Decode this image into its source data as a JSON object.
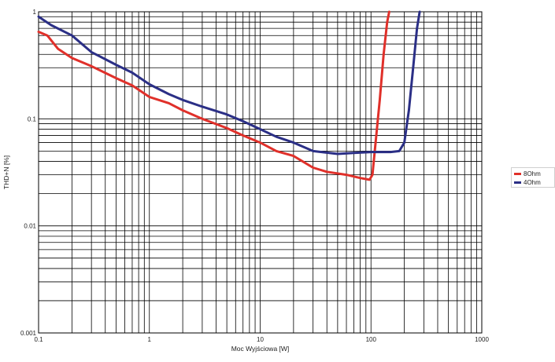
{
  "chart_data": {
    "type": "line",
    "xlabel": "Moc Wyjściowa [W]",
    "ylabel": "THD+N [%]",
    "x_scale": "log",
    "y_scale": "log",
    "xlim": [
      0.1,
      1000
    ],
    "ylim": [
      0.001,
      1
    ],
    "grid": true,
    "legend_position": "right",
    "x_tick_labels": [
      "0.1",
      "1",
      "10",
      "100",
      "1000"
    ],
    "y_tick_labels": [
      "1",
      "0.1",
      "0.01",
      "0.001"
    ],
    "x_ticks": [
      0.1,
      1,
      10,
      100,
      1000
    ],
    "y_ticks": [
      1,
      0.1,
      0.01,
      0.001
    ],
    "series": [
      {
        "name": "8Ohm",
        "color": "#e0302a",
        "points": [
          [
            0.1,
            0.65
          ],
          [
            0.12,
            0.6
          ],
          [
            0.15,
            0.45
          ],
          [
            0.2,
            0.37
          ],
          [
            0.3,
            0.31
          ],
          [
            0.5,
            0.24
          ],
          [
            0.7,
            0.205
          ],
          [
            1,
            0.16
          ],
          [
            1.5,
            0.14
          ],
          [
            2,
            0.12
          ],
          [
            3,
            0.1
          ],
          [
            5,
            0.082
          ],
          [
            7,
            0.07
          ],
          [
            10,
            0.06
          ],
          [
            14,
            0.05
          ],
          [
            20,
            0.045
          ],
          [
            30,
            0.035
          ],
          [
            40,
            0.032
          ],
          [
            60,
            0.03
          ],
          [
            80,
            0.028
          ],
          [
            97,
            0.027
          ],
          [
            103,
            0.03
          ],
          [
            110,
            0.06
          ],
          [
            120,
            0.15
          ],
          [
            130,
            0.4
          ],
          [
            140,
            0.8
          ],
          [
            146,
            1.0
          ]
        ]
      },
      {
        "name": "4Ohm",
        "color": "#2b2f86",
        "points": [
          [
            0.1,
            0.9
          ],
          [
            0.13,
            0.75
          ],
          [
            0.2,
            0.6
          ],
          [
            0.3,
            0.42
          ],
          [
            0.5,
            0.32
          ],
          [
            0.7,
            0.27
          ],
          [
            1,
            0.21
          ],
          [
            1.5,
            0.17
          ],
          [
            2,
            0.15
          ],
          [
            3,
            0.13
          ],
          [
            5,
            0.11
          ],
          [
            7,
            0.095
          ],
          [
            10,
            0.08
          ],
          [
            14,
            0.068
          ],
          [
            20,
            0.06
          ],
          [
            30,
            0.05
          ],
          [
            50,
            0.047
          ],
          [
            70,
            0.048
          ],
          [
            100,
            0.049
          ],
          [
            150,
            0.049
          ],
          [
            180,
            0.05
          ],
          [
            200,
            0.06
          ],
          [
            220,
            0.12
          ],
          [
            240,
            0.3
          ],
          [
            260,
            0.7
          ],
          [
            275,
            1.0
          ]
        ]
      }
    ]
  }
}
